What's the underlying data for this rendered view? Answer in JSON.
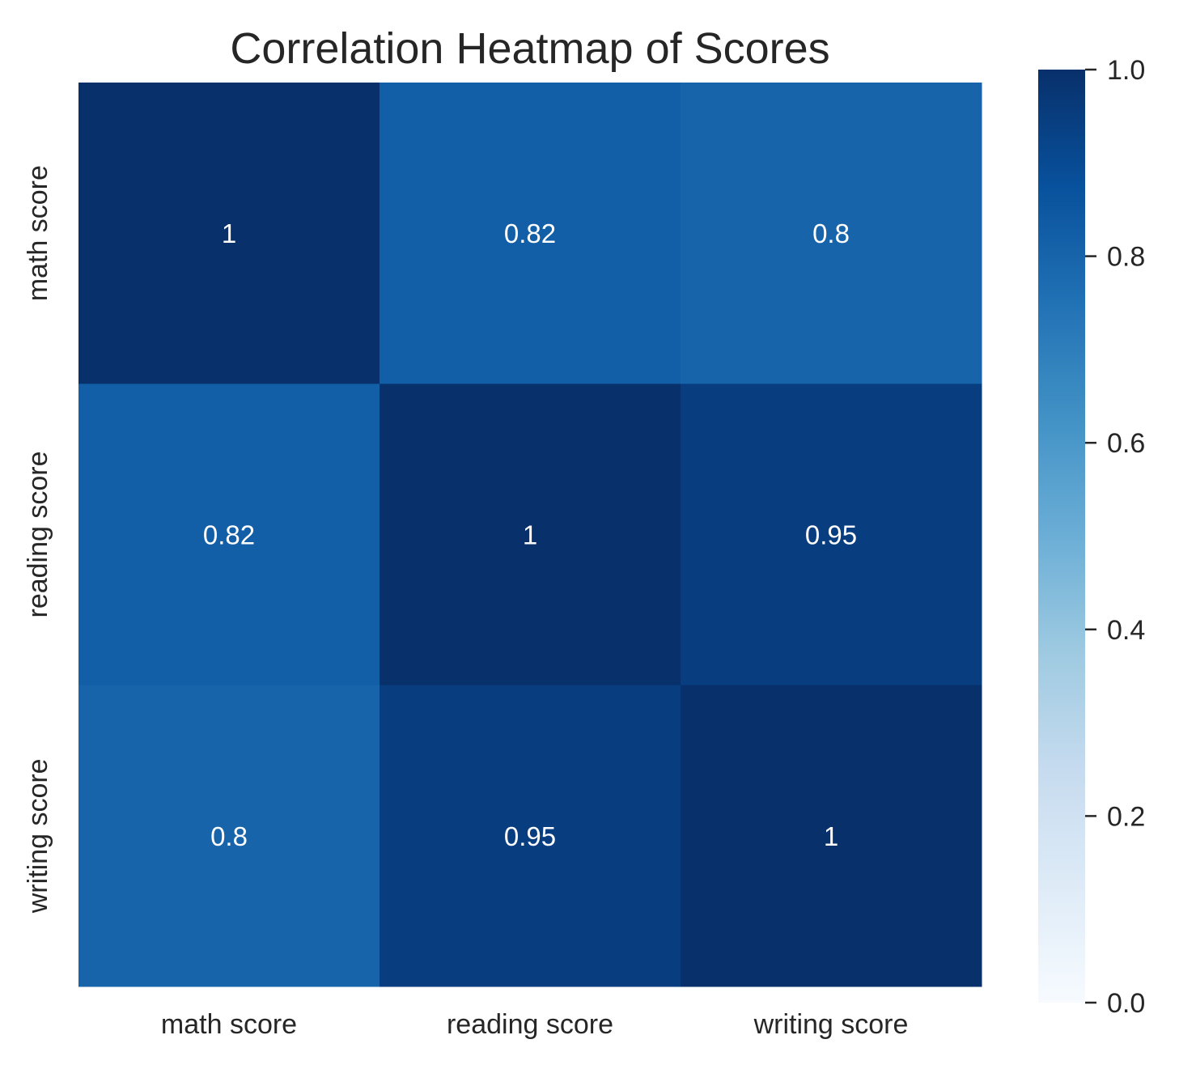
{
  "chart_data": {
    "type": "heatmap",
    "title": "Correlation Heatmap of Scores",
    "xlabel": "",
    "ylabel": "",
    "x_categories": [
      "math score",
      "reading score",
      "writing score"
    ],
    "y_categories": [
      "math score",
      "reading score",
      "writing score"
    ],
    "values": [
      [
        1,
        0.82,
        0.8
      ],
      [
        0.82,
        1,
        0.95
      ],
      [
        0.8,
        0.95,
        1
      ]
    ],
    "annotations": [
      [
        "1",
        "0.82",
        "0.8"
      ],
      [
        "0.82",
        "1",
        "0.95"
      ],
      [
        "0.8",
        "0.95",
        "1"
      ]
    ],
    "colormap": "Blues",
    "vmin": 0,
    "vmax": 1,
    "colorbar": {
      "ticks": [
        0,
        0.2,
        0.4,
        0.6,
        0.8,
        1
      ],
      "tick_labels": [
        "0.0",
        "0.2",
        "0.4",
        "0.6",
        "0.8",
        "1.0"
      ]
    },
    "grid": false,
    "colors": {
      "text": "#262626",
      "annotation_text": "#ffffff"
    }
  }
}
